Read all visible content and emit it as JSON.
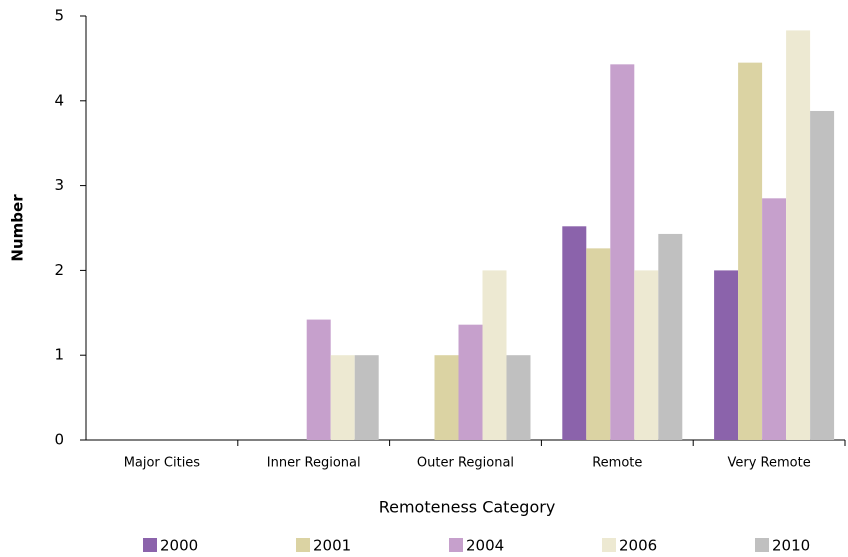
{
  "chart_data": {
    "type": "bar",
    "x_label": "Remoteness Category",
    "y_label": "Number",
    "categories": [
      "Major Cities",
      "Inner Regional",
      "Outer Regional",
      "Remote",
      "Very Remote"
    ],
    "series": [
      {
        "name": "2000",
        "color": "#8b63ab",
        "values": [
          0,
          0,
          0,
          2.52,
          2.0
        ]
      },
      {
        "name": "2001",
        "color": "#dbd3a3",
        "values": [
          0,
          0,
          1.0,
          2.26,
          4.45
        ]
      },
      {
        "name": "2004",
        "color": "#c6a0cc",
        "values": [
          0,
          1.42,
          1.36,
          4.43,
          2.85
        ]
      },
      {
        "name": "2006",
        "color": "#ede9d2",
        "values": [
          0,
          1.0,
          2.0,
          2.0,
          4.83
        ]
      },
      {
        "name": "2010",
        "color": "#c0c0c0",
        "values": [
          0,
          1.0,
          1.0,
          2.43,
          3.88
        ]
      }
    ],
    "ylim": [
      0,
      5
    ],
    "yticks": [
      0,
      1,
      2,
      3,
      4,
      5
    ],
    "grid": false,
    "legend": "bottom"
  }
}
